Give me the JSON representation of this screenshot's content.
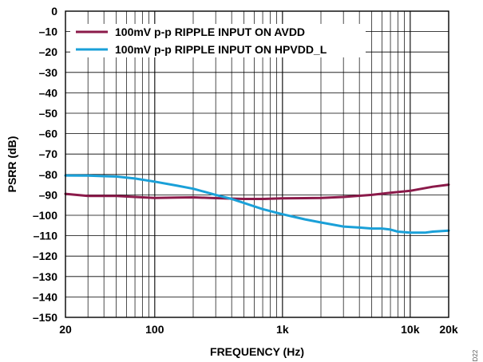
{
  "chart_data": {
    "type": "line",
    "title": "",
    "xlabel": "FREQUENCY (Hz)",
    "ylabel": "PSRR (dB)",
    "xscale": "log",
    "xlim": [
      20,
      20000
    ],
    "ylim": [
      -150,
      0
    ],
    "x_ticks": [
      20,
      100,
      1000,
      10000,
      20000
    ],
    "x_tick_labels": [
      "20",
      "100",
      "1k",
      "10k",
      "20k"
    ],
    "y_ticks": [
      0,
      -10,
      -20,
      -30,
      -40,
      -50,
      -60,
      -70,
      -80,
      -90,
      -100,
      -110,
      -120,
      -130,
      -140,
      -150
    ],
    "y_tick_labels": [
      "0",
      "–10",
      "–20",
      "–30",
      "–40",
      "–50",
      "–60",
      "–70",
      "–80",
      "–90",
      "–100",
      "–110",
      "–120",
      "–130",
      "–140",
      "–150"
    ],
    "grid": true,
    "legend_position": "top-left",
    "series": [
      {
        "name": "100mV p-p RIPPLE INPUT ON AVDD",
        "color": "#8b1a4a",
        "x": [
          20,
          30,
          50,
          70,
          100,
          150,
          200,
          300,
          500,
          700,
          1000,
          2000,
          3000,
          5000,
          7000,
          10000,
          15000,
          20000
        ],
        "y": [
          -89.5,
          -90.5,
          -90.5,
          -91,
          -91.5,
          -91.3,
          -91.2,
          -91.6,
          -92,
          -92,
          -91.7,
          -91.5,
          -91,
          -90,
          -89,
          -88,
          -86,
          -85
        ]
      },
      {
        "name": "100mV p-p RIPPLE INPUT ON HPVDD_L",
        "color": "#1aa0d8",
        "x": [
          20,
          30,
          50,
          70,
          100,
          150,
          200,
          300,
          400,
          500,
          700,
          1000,
          1500,
          2000,
          3000,
          4000,
          5000,
          6000,
          7000,
          8000,
          10000,
          13000,
          15000,
          20000
        ],
        "y": [
          -80.5,
          -80.6,
          -81,
          -82,
          -83.5,
          -85.5,
          -87,
          -90,
          -92,
          -94,
          -97,
          -99.5,
          -102,
          -103.5,
          -105.5,
          -106,
          -106.5,
          -106.5,
          -107,
          -108,
          -108.5,
          -108.5,
          -108,
          -107.5
        ]
      }
    ]
  },
  "side_note": "D22"
}
